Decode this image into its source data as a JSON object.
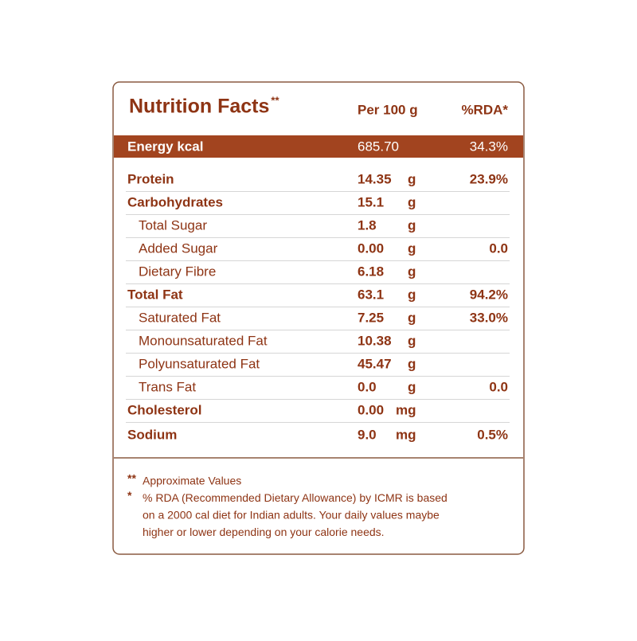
{
  "header": {
    "title": "Nutrition Facts",
    "title_mark": "**",
    "per": "Per 100 g",
    "rda": "%RDA*"
  },
  "energy": {
    "name": "Energy kcal",
    "amount": "685.70",
    "rda": "34.3%"
  },
  "table": {
    "rows": [
      {
        "name": "Protein",
        "amount": "14.35",
        "unit": "g",
        "rda": "23.9%",
        "bold": true
      },
      {
        "name": "Carbohydrates",
        "amount": "15.1",
        "unit": "g",
        "bold": true
      },
      {
        "name": "Total Sugar",
        "amount": "1.8",
        "unit": "g",
        "indent": true
      },
      {
        "name": "Added Sugar",
        "amount": "0.00",
        "unit": "g",
        "rda": "0.0",
        "indent": true
      },
      {
        "name": "Dietary Fibre",
        "amount": "6.18",
        "unit": "g",
        "indent": true
      },
      {
        "name": "Total Fat",
        "amount": "63.1",
        "unit": "g",
        "rda": "94.2%",
        "bold": true
      },
      {
        "name": "Saturated Fat",
        "amount": "7.25",
        "unit": "g",
        "rda": "33.0%",
        "indent": true
      },
      {
        "name": "Monounsaturated Fat",
        "amount": "10.38",
        "unit": "g",
        "indent": true
      },
      {
        "name": "Polyunsaturated Fat",
        "amount": "45.47",
        "unit": "g",
        "indent": true
      },
      {
        "name": "Trans Fat",
        "amount": "0.0",
        "unit": "g",
        "rda": "0.0",
        "indent": true
      },
      {
        "name": "Cholesterol",
        "amount": "0.00",
        "unit": "mg",
        "bold": true
      },
      {
        "name": "Sodium",
        "amount": "9.0",
        "unit": "mg",
        "rda": "0.5%",
        "bold": true
      }
    ]
  },
  "footnotes": [
    {
      "mark": "**",
      "lines": [
        "Approximate Values"
      ]
    },
    {
      "mark": "*",
      "lines": [
        "% RDA (Recommended Dietary Allowance) by ICMR is based",
        "on a 2000    cal diet for Indian adults. Your daily values maybe",
        "higher or lower depending on your calorie needs."
      ]
    }
  ]
}
